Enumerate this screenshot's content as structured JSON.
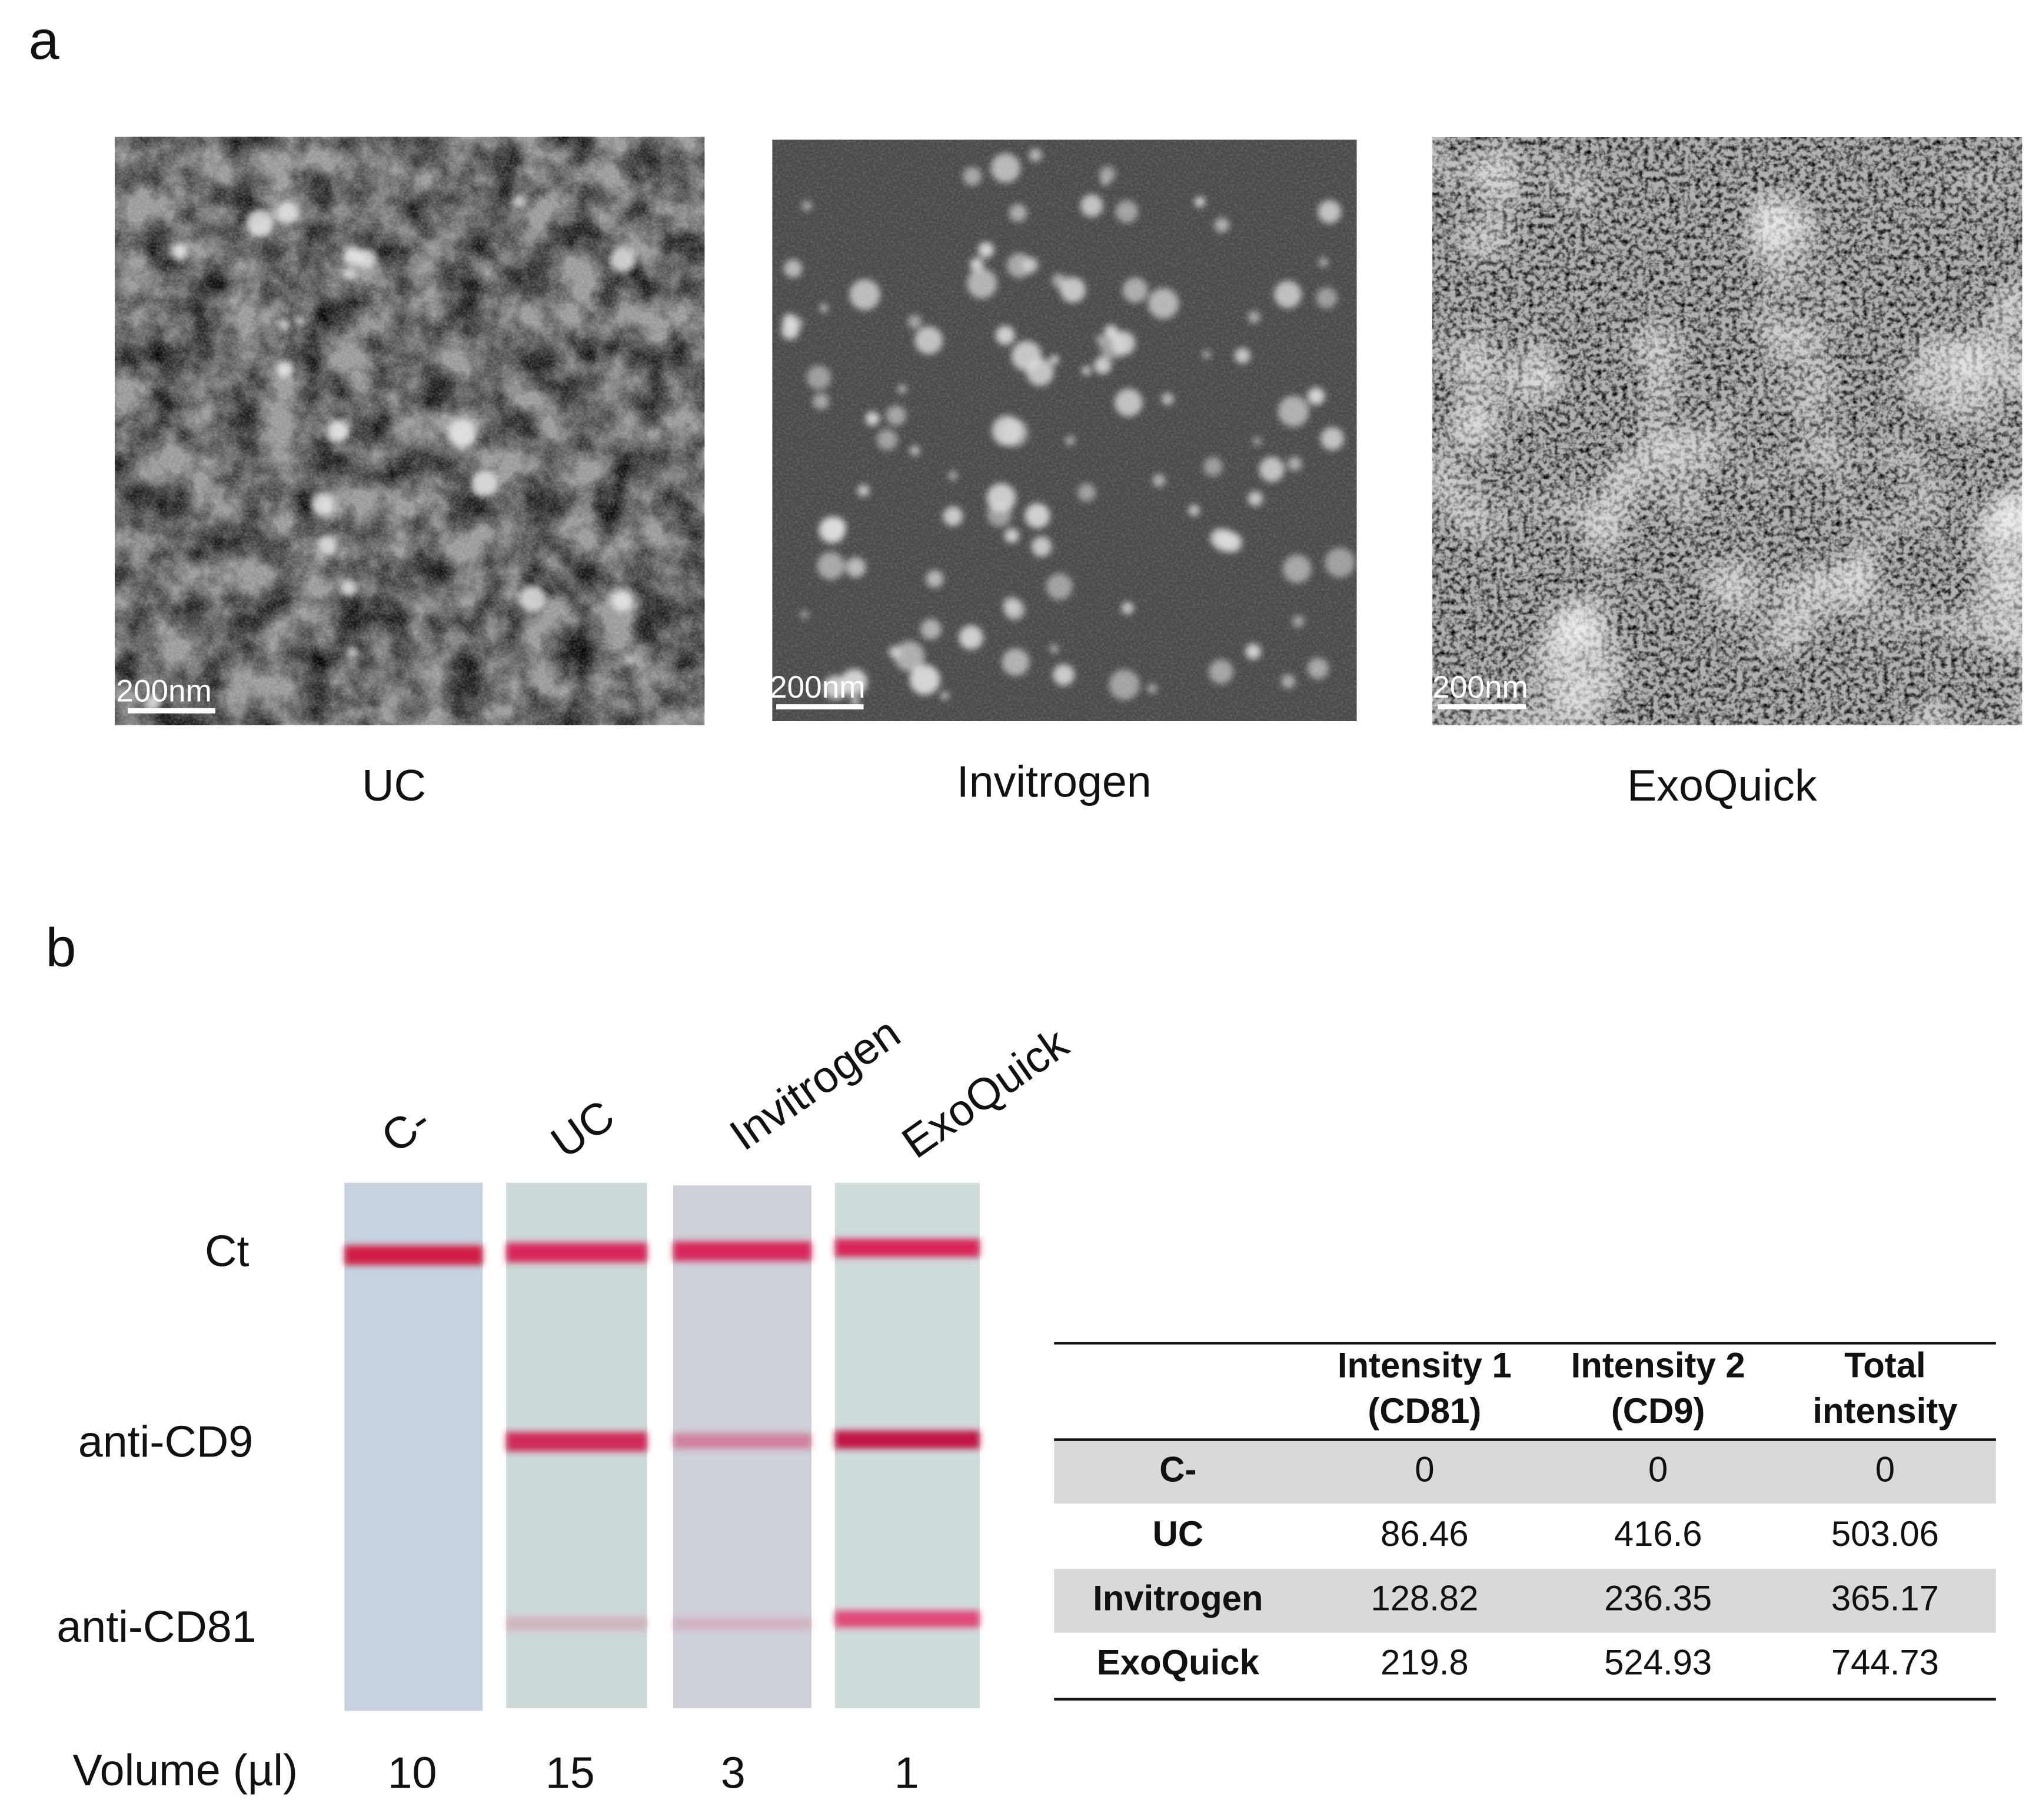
{
  "panel_a": {
    "label": "a",
    "images": [
      {
        "label": "UC",
        "scale_bar": "200nm"
      },
      {
        "label": "Invitrogen",
        "scale_bar": "200nm"
      },
      {
        "label": "ExoQuick",
        "scale_bar": "200nm"
      }
    ]
  },
  "panel_b": {
    "label": "b",
    "strip_labels": [
      "C-",
      "UC",
      "Invitrogen",
      "ExoQuick"
    ],
    "row_labels": [
      "Ct",
      "anti-CD9",
      "anti-CD81"
    ],
    "volume_label": "Volume (µl)",
    "volumes": [
      10,
      15,
      3,
      1
    ],
    "table": {
      "header": [
        [],
        [
          "Intensity 1",
          "(CD81)"
        ],
        [
          "Intensity 2",
          "(CD9)"
        ],
        [
          "Total",
          "intensity"
        ]
      ],
      "rows": [
        [
          "C-",
          0,
          0,
          0
        ],
        [
          "UC",
          86.46,
          416.6,
          503.06
        ],
        [
          "Invitrogen",
          128.82,
          236.35,
          365.17
        ],
        [
          "ExoQuick",
          219.8,
          524.93,
          744.73
        ]
      ]
    }
  }
}
